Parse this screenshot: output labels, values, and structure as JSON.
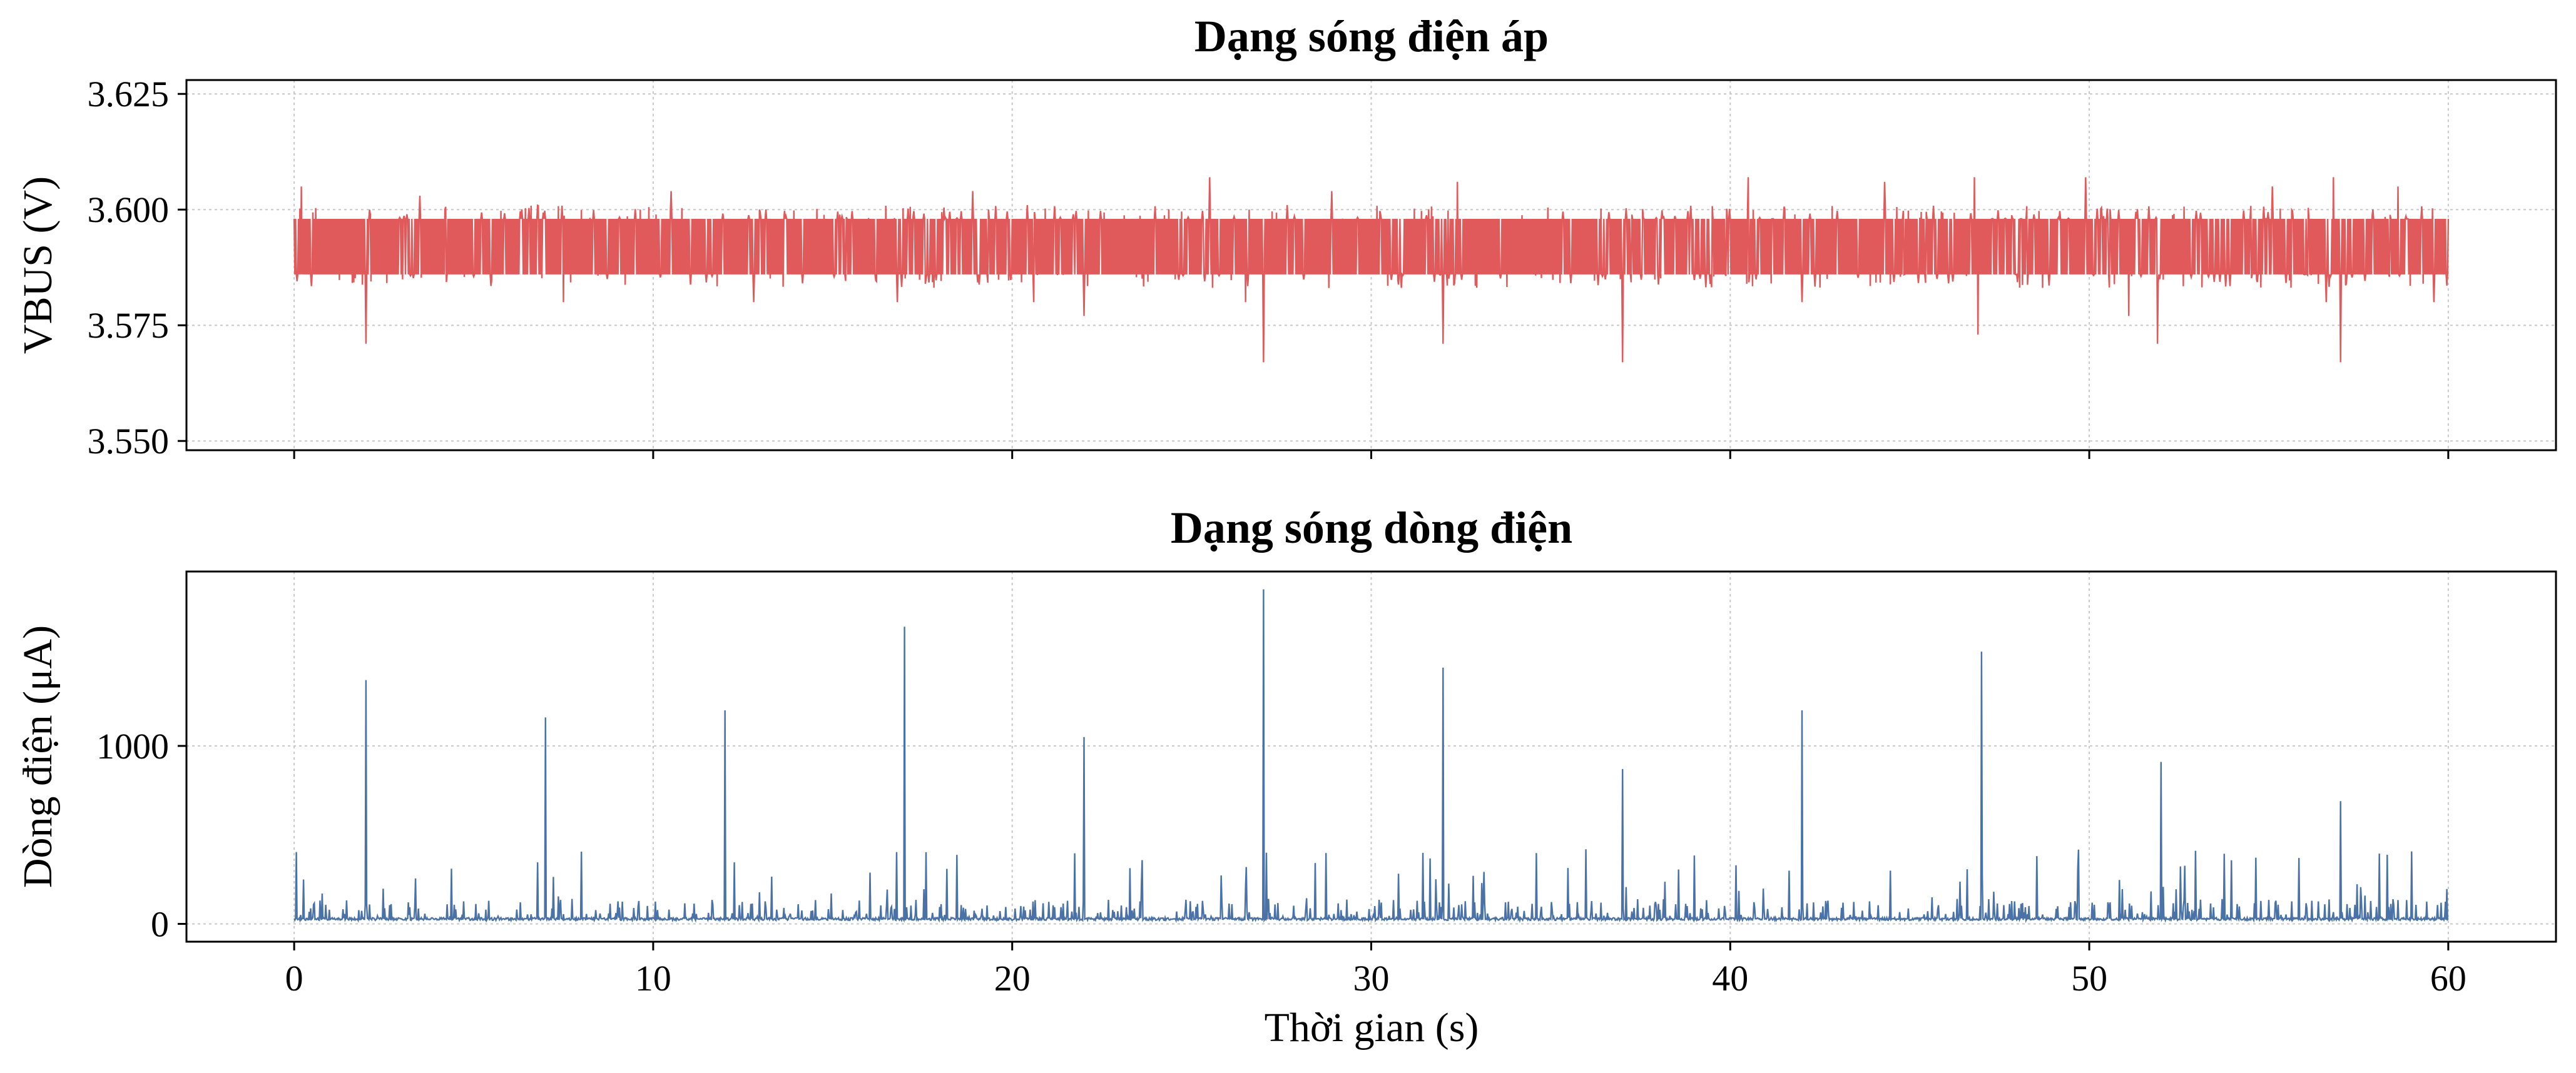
{
  "chart_data": [
    {
      "type": "line",
      "title": "Dạng sóng điện áp",
      "xlabel": "",
      "ylabel": "VBUS (V)",
      "xlim": [
        -3,
        63
      ],
      "ylim": [
        3.548,
        3.628
      ],
      "xticks": [
        0,
        10,
        20,
        30,
        40,
        50,
        60
      ],
      "xtick_labels_visible": false,
      "yticks": [
        3.55,
        3.575,
        3.6,
        3.625
      ],
      "ytick_labels": [
        "3.550",
        "3.575",
        "3.600",
        "3.625"
      ],
      "grid": true,
      "color": "#e05a5c",
      "signal": {
        "description_points": "noise band",
        "x_start": 0,
        "x_end": 60,
        "baseline": 3.592,
        "band_low": 3.586,
        "band_high": 3.598,
        "spikes_up": [
          [
            0.2,
            3.605
          ],
          [
            3.5,
            3.603
          ],
          [
            10.5,
            3.604
          ],
          [
            18.9,
            3.604
          ],
          [
            25.5,
            3.607
          ],
          [
            28.9,
            3.604
          ],
          [
            32.4,
            3.606
          ],
          [
            37.0,
            3.604
          ],
          [
            40.5,
            3.607
          ],
          [
            44.3,
            3.606
          ],
          [
            46.8,
            3.607
          ],
          [
            49.9,
            3.607
          ],
          [
            55.1,
            3.605
          ],
          [
            56.8,
            3.607
          ],
          [
            58.6,
            3.605
          ]
        ],
        "spikes_down": [
          [
            2.0,
            3.571
          ],
          [
            7.5,
            3.58
          ],
          [
            12.8,
            3.58
          ],
          [
            16.8,
            3.58
          ],
          [
            20.6,
            3.58
          ],
          [
            22.0,
            3.577
          ],
          [
            26.5,
            3.58
          ],
          [
            27.0,
            3.567
          ],
          [
            32.0,
            3.571
          ],
          [
            37.0,
            3.567
          ],
          [
            42.0,
            3.58
          ],
          [
            46.9,
            3.573
          ],
          [
            51.1,
            3.577
          ],
          [
            51.9,
            3.571
          ],
          [
            56.6,
            3.58
          ],
          [
            57.0,
            3.567
          ],
          [
            59.6,
            3.58
          ]
        ]
      }
    },
    {
      "type": "line",
      "title": "Dạng sóng dòng điện",
      "xlabel": "Thời gian (s)",
      "ylabel": "Dòng điện (μA)",
      "xlim": [
        -3,
        63
      ],
      "ylim": [
        -100,
        1980
      ],
      "xticks": [
        0,
        10,
        20,
        30,
        40,
        50,
        60
      ],
      "xtick_labels": [
        "0",
        "10",
        "20",
        "30",
        "40",
        "50",
        "60"
      ],
      "yticks": [
        0,
        1000
      ],
      "ytick_labels": [
        "0",
        "1000"
      ],
      "grid": true,
      "color": "#4a72a6",
      "signal": {
        "x_start": 0,
        "x_end": 60,
        "baseline": 20,
        "noise_max": 400,
        "spikes": [
          [
            2.0,
            1370
          ],
          [
            7.0,
            1160
          ],
          [
            12.0,
            1200
          ],
          [
            17.0,
            1670
          ],
          [
            22.0,
            1050
          ],
          [
            27.0,
            1880
          ],
          [
            32.0,
            1440
          ],
          [
            37.0,
            870
          ],
          [
            42.0,
            1200
          ],
          [
            47.0,
            1530
          ],
          [
            52.0,
            910
          ],
          [
            57.0,
            690
          ]
        ]
      }
    }
  ]
}
